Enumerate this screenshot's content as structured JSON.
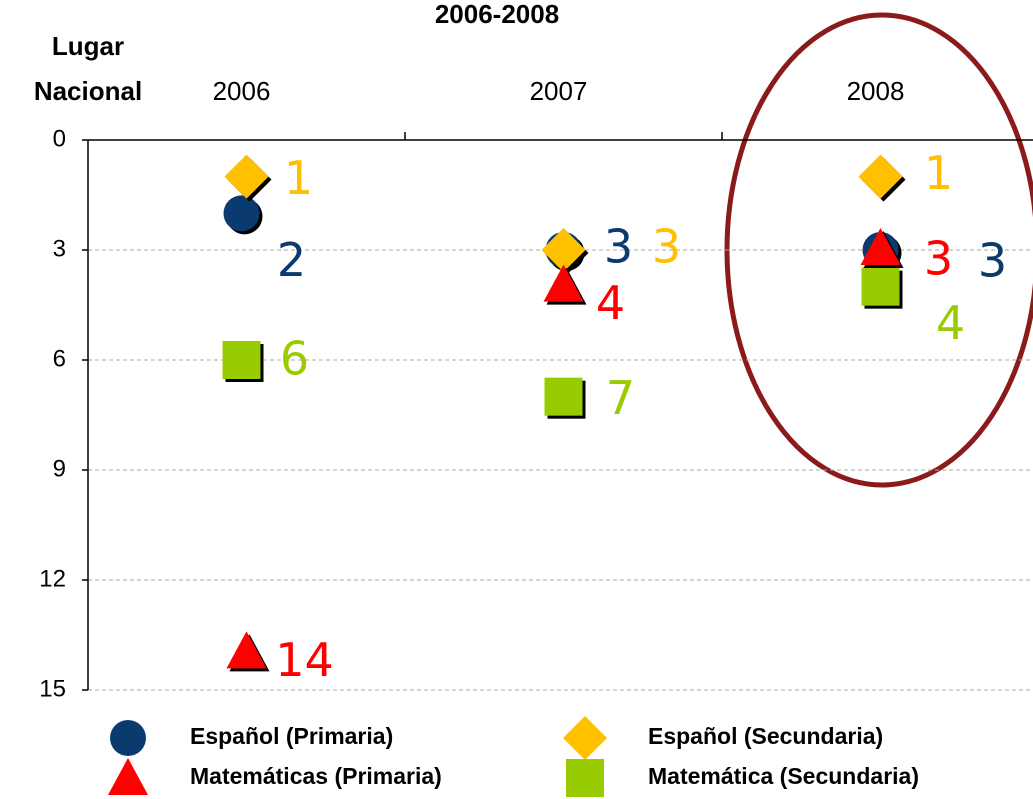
{
  "chart_data": {
    "type": "dot",
    "title": "2006-2008",
    "ylabel_lines": [
      "Lugar",
      "Nacional"
    ],
    "categories": [
      "2006",
      "2007",
      "2008"
    ],
    "ylim": [
      0,
      15
    ],
    "yticks": [
      0,
      3,
      6,
      9,
      12,
      15
    ],
    "y_inverted": true,
    "grid": true,
    "series": [
      {
        "name": "Español (Primaria)",
        "marker": "circle",
        "color": "#0b3a6e",
        "values": [
          2,
          3,
          3
        ]
      },
      {
        "name": "Español (Secundaria)",
        "marker": "diamond",
        "color": "#ffc000",
        "values": [
          1,
          3,
          1
        ]
      },
      {
        "name": "Matemáticas (Primaria)",
        "marker": "triangle",
        "color": "#ff0000",
        "values": [
          14,
          4,
          3
        ]
      },
      {
        "name": "Matemática (Secundaria)",
        "marker": "square",
        "color": "#99cc00",
        "values": [
          6,
          7,
          4
        ]
      }
    ]
  }
}
